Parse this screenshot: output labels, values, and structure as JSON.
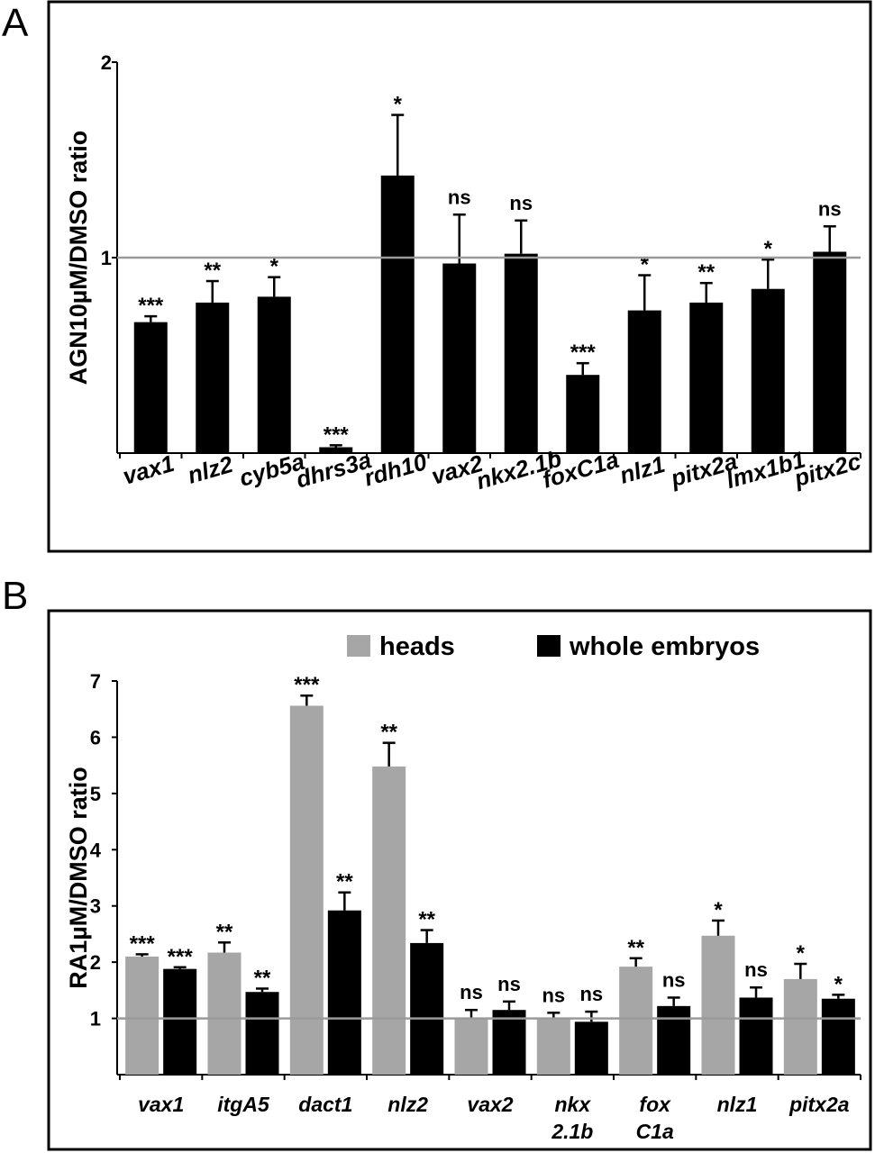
{
  "panels": {
    "a_letter": "A",
    "b_letter": "B"
  },
  "colors": {
    "black_bar": "#000000",
    "gray_bar": "#a6a6a6",
    "reference_line": "#9a9a9a"
  },
  "chart_data": [
    {
      "type": "bar",
      "panel": "A",
      "ylabel": "AGN10µM/DMSO ratio",
      "ylim": [
        0,
        2
      ],
      "yticks": [
        {
          "value": 1,
          "label": "1"
        },
        {
          "value": 2,
          "label": "2"
        }
      ],
      "reference_line": 1,
      "categories": [
        "vax1",
        "nlz2",
        "cyb5a",
        "dhrs3a",
        "rdh10",
        "vax2",
        "nkx2.1b",
        "foxC1a",
        "nlz1",
        "pitx2a",
        "lmx1b1",
        "pitx2c"
      ],
      "series": [
        {
          "color": "#000000",
          "values": [
            0.67,
            0.77,
            0.8,
            0.03,
            1.42,
            0.97,
            1.02,
            0.4,
            0.73,
            0.77,
            0.84,
            1.03
          ],
          "errors": [
            0.03,
            0.11,
            0.1,
            0.01,
            0.31,
            0.25,
            0.17,
            0.06,
            0.18,
            0.1,
            0.15,
            0.13
          ],
          "significance": [
            "***",
            "**",
            "*",
            "***",
            "*",
            "ns",
            "ns",
            "***",
            "*",
            "**",
            "*",
            "ns"
          ]
        }
      ]
    },
    {
      "type": "bar",
      "panel": "B",
      "ylabel": "RA1µM/DMSO ratio",
      "ylim": [
        0,
        7
      ],
      "yticks": [
        {
          "value": 1,
          "label": "1"
        },
        {
          "value": 2,
          "label": "2"
        },
        {
          "value": 3,
          "label": "3"
        },
        {
          "value": 4,
          "label": "4"
        },
        {
          "value": 5,
          "label": "5"
        },
        {
          "value": 6,
          "label": "6"
        },
        {
          "value": 7,
          "label": "7"
        }
      ],
      "reference_line": 1,
      "legend_position": "top-right",
      "categories": [
        {
          "lines": [
            "vax1"
          ]
        },
        {
          "lines": [
            "itgA5"
          ]
        },
        {
          "lines": [
            "dact1"
          ]
        },
        {
          "lines": [
            "nlz2"
          ]
        },
        {
          "lines": [
            "vax2"
          ]
        },
        {
          "lines": [
            "nkx",
            "2.1b"
          ]
        },
        {
          "lines": [
            "fox",
            "C1a"
          ]
        },
        {
          "lines": [
            "nlz1"
          ]
        },
        {
          "lines": [
            "pitx2a"
          ]
        }
      ],
      "series": [
        {
          "name": "heads",
          "color": "#a6a6a6",
          "values": [
            2.1,
            2.17,
            6.56,
            5.48,
            1.0,
            1.0,
            1.92,
            2.47,
            1.7
          ],
          "errors": [
            0.04,
            0.18,
            0.18,
            0.42,
            0.15,
            0.1,
            0.15,
            0.27,
            0.27
          ],
          "significance": [
            "***",
            "**",
            "***",
            "**",
            "ns",
            "ns",
            "**",
            "*",
            "*"
          ]
        },
        {
          "name": "whole embryos",
          "color": "#000000",
          "values": [
            1.88,
            1.47,
            2.92,
            2.34,
            1.15,
            0.94,
            1.22,
            1.37,
            1.35
          ],
          "errors": [
            0.03,
            0.06,
            0.32,
            0.23,
            0.15,
            0.18,
            0.15,
            0.18,
            0.07
          ],
          "significance": [
            "***",
            "**",
            "**",
            "**",
            "ns",
            "ns",
            "ns",
            "ns",
            "*"
          ]
        }
      ]
    }
  ]
}
